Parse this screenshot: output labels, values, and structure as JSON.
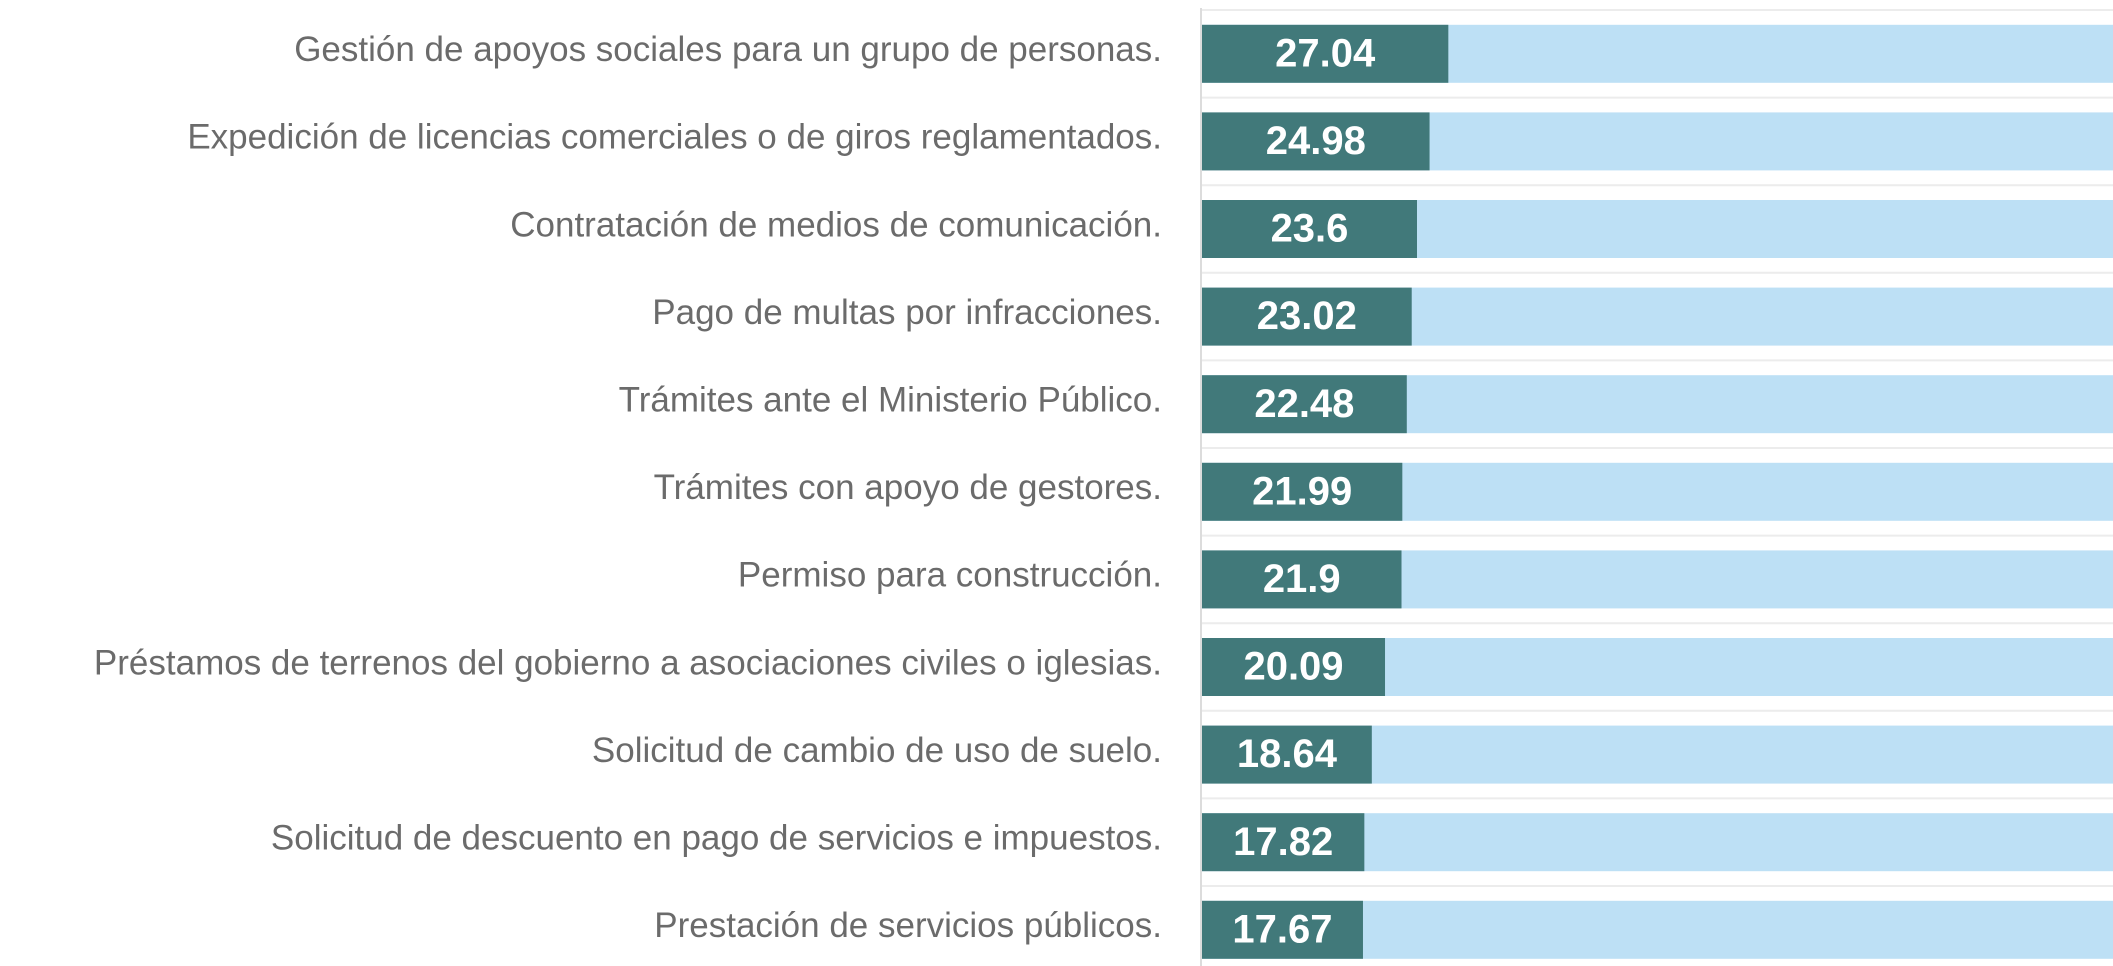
{
  "chart_data": {
    "type": "bar",
    "categories": [
      "Gestión de apoyos sociales para un grupo de personas.",
      "Expedición de licencias comerciales o de giros reglamentados.",
      "Contratación de medios de comunicación.",
      "Pago de multas por infracciones.",
      "Trámites ante el Ministerio Público.",
      "Trámites con apoyo de gestores.",
      "Permiso para construcción.",
      "Préstamos de terrenos del gobierno a asociaciones civiles o iglesias.",
      "Solicitud de cambio de uso de suelo.",
      "Solicitud de descuento en pago de servicios e impuestos.",
      "Prestación de servicios públicos."
    ],
    "values": [
      27.04,
      24.98,
      23.6,
      23.02,
      22.48,
      21.99,
      21.9,
      20.09,
      18.64,
      17.82,
      17.67
    ],
    "color": "#41797a",
    "xlim": [
      0,
      100
    ]
  }
}
